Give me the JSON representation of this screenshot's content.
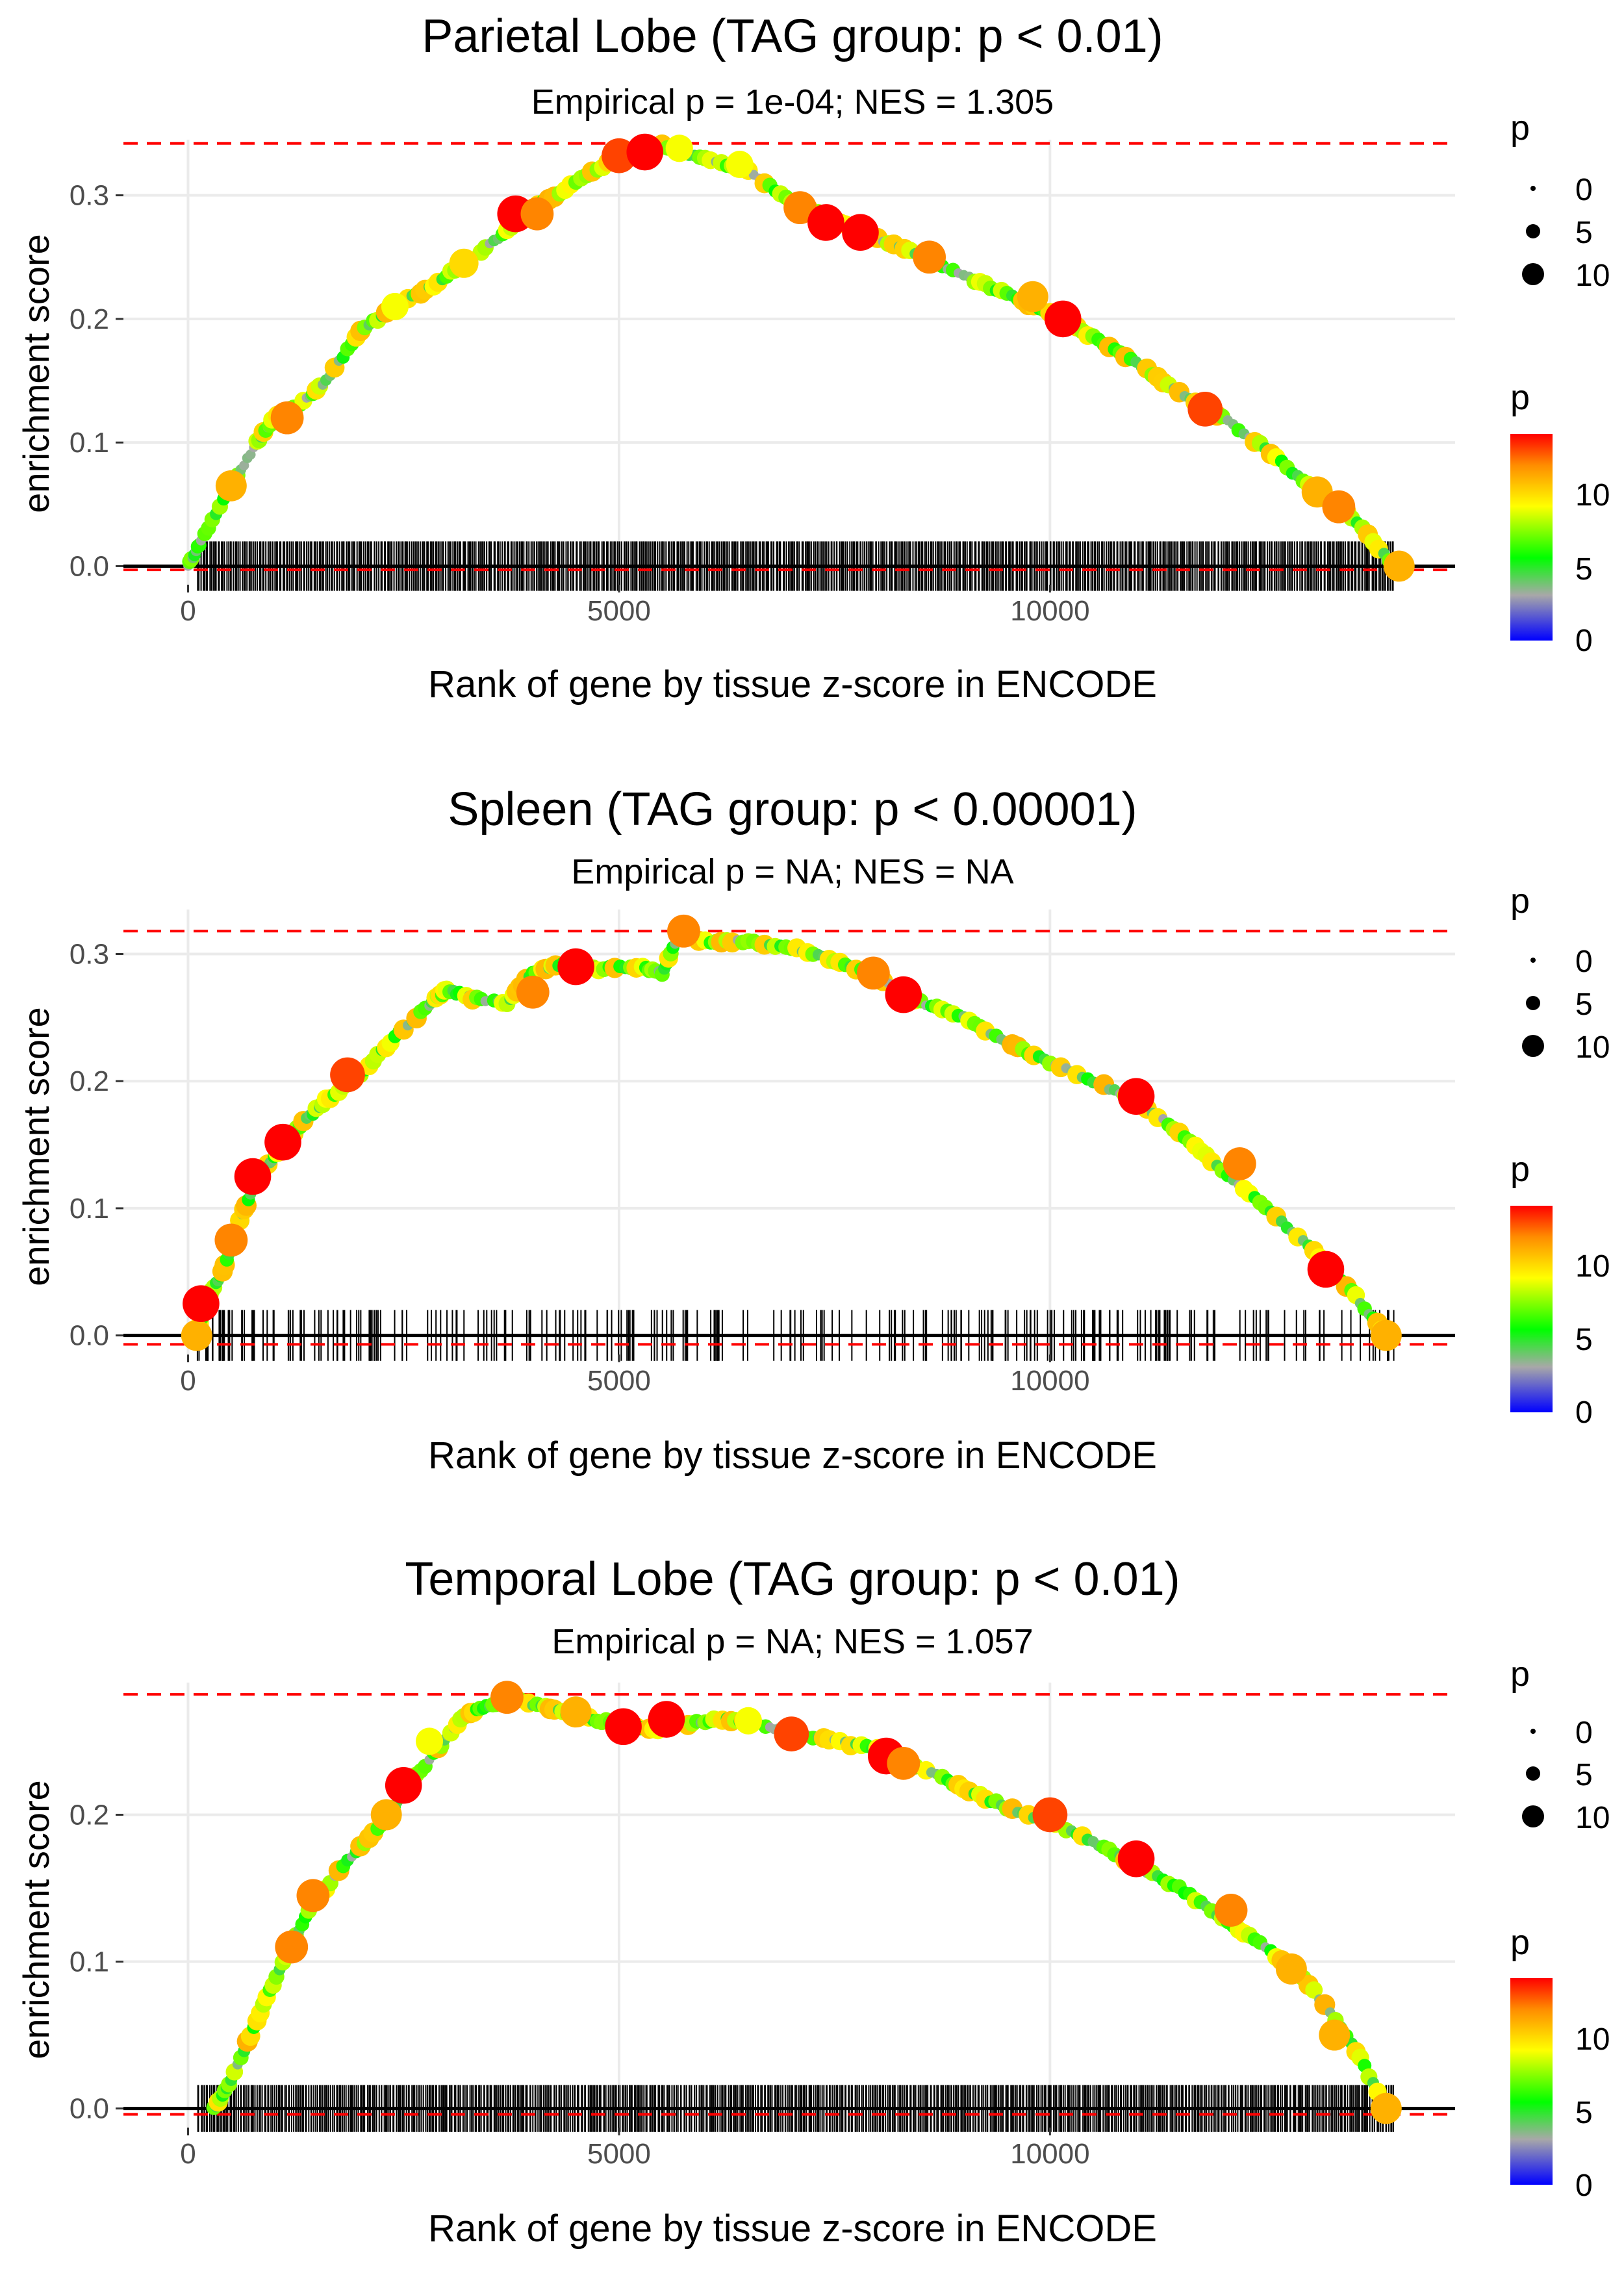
{
  "colors": {
    "background": "#ffffff",
    "grid": "#ebebeb",
    "axis_text": "#4d4d4d",
    "title_text": "#000000",
    "running_line": "#a8a8a8",
    "reference_line": "#ff0000",
    "baseline": "#000000",
    "rug": "#000000",
    "colorbar_stops": [
      "#0000ff",
      "#a8a8a8",
      "#00ff00",
      "#ffff00",
      "#ff8c00",
      "#ff0000"
    ]
  },
  "chart_data": [
    {
      "type": "scatter",
      "title": "Parietal Lobe (TAG group: p < 0.01)",
      "subtitle": "Empirical p = 1e-04; NES = 1.305",
      "xlabel": "Rank of gene by tissue z-score in ENCODE",
      "ylabel": "enrichment score",
      "xlim": [
        -750,
        14700
      ],
      "ylim": [
        -0.015,
        0.345
      ],
      "x_ticks": [
        0,
        5000,
        10000
      ],
      "x_tick_labels": [
        "0",
        "5000",
        "10000"
      ],
      "y_ticks": [
        0.0,
        0.1,
        0.2,
        0.3
      ],
      "y_tick_labels": [
        "0.0",
        "0.1",
        "0.2",
        "0.3"
      ],
      "grid": true,
      "max_es_line": 0.342,
      "min_es_line": -0.003,
      "rug": {
        "from": 100,
        "to": 14000,
        "count": 700,
        "dense": true,
        "y_top": 0.02,
        "y_bottom": -0.02
      },
      "curve": [
        [
          0,
          0.0
        ],
        [
          150,
          0.02
        ],
        [
          500,
          0.065
        ],
        [
          800,
          0.1
        ],
        [
          1000,
          0.12
        ],
        [
          1300,
          0.13
        ],
        [
          1600,
          0.15
        ],
        [
          2000,
          0.19
        ],
        [
          2400,
          0.21
        ],
        [
          2800,
          0.225
        ],
        [
          3200,
          0.245
        ],
        [
          3600,
          0.265
        ],
        [
          4000,
          0.29
        ],
        [
          4500,
          0.31
        ],
        [
          5000,
          0.332
        ],
        [
          5500,
          0.34
        ],
        [
          6000,
          0.33
        ],
        [
          6500,
          0.32
        ],
        [
          7000,
          0.295
        ],
        [
          7500,
          0.28
        ],
        [
          8000,
          0.265
        ],
        [
          8500,
          0.252
        ],
        [
          9000,
          0.235
        ],
        [
          9500,
          0.22
        ],
        [
          10000,
          0.205
        ],
        [
          10500,
          0.185
        ],
        [
          11000,
          0.165
        ],
        [
          11500,
          0.14
        ],
        [
          12000,
          0.12
        ],
        [
          12500,
          0.095
        ],
        [
          13000,
          0.065
        ],
        [
          13500,
          0.04
        ],
        [
          14000,
          0.0
        ]
      ],
      "points": [
        [
          500,
          0.065,
          11
        ],
        [
          1150,
          0.12,
          12
        ],
        [
          3800,
          0.285,
          14
        ],
        [
          4050,
          0.285,
          12
        ],
        [
          5000,
          0.332,
          13
        ],
        [
          5300,
          0.335,
          14
        ],
        [
          5700,
          0.338,
          9
        ],
        [
          7100,
          0.29,
          12
        ],
        [
          7400,
          0.278,
          14
        ],
        [
          7800,
          0.27,
          14
        ],
        [
          8600,
          0.25,
          12
        ],
        [
          9800,
          0.218,
          11
        ],
        [
          10150,
          0.2,
          14
        ],
        [
          11800,
          0.127,
          13
        ],
        [
          13100,
          0.06,
          11
        ],
        [
          13350,
          0.048,
          12
        ],
        [
          14050,
          0.0,
          11
        ],
        [
          2400,
          0.21,
          9
        ],
        [
          3200,
          0.245,
          10
        ],
        [
          6400,
          0.325,
          9
        ]
      ],
      "legend_size": {
        "title": "p",
        "labels": [
          "0",
          "5",
          "10"
        ],
        "values": [
          0,
          5,
          10
        ]
      },
      "legend_color": {
        "title": "p",
        "labels": [
          "10",
          "5",
          "0"
        ],
        "values": [
          10,
          5,
          0
        ],
        "max": 14
      }
    },
    {
      "type": "scatter",
      "title": "Spleen (TAG group: p < 0.00001)",
      "subtitle": "Empirical p = NA; NES = NA",
      "xlabel": "Rank of gene by tissue z-score in ENCODE",
      "ylabel": "enrichment score",
      "xlim": [
        -750,
        14700
      ],
      "ylim": [
        -0.015,
        0.335
      ],
      "x_ticks": [
        0,
        5000,
        10000
      ],
      "x_tick_labels": [
        "0",
        "5000",
        "10000"
      ],
      "y_ticks": [
        0.0,
        0.1,
        0.2,
        0.3
      ],
      "y_tick_labels": [
        "0.0",
        "0.1",
        "0.2",
        "0.3"
      ],
      "grid": true,
      "max_es_line": 0.318,
      "min_es_line": -0.007,
      "rug": {
        "from": 100,
        "to": 14000,
        "count": 260,
        "dense": false,
        "y_top": 0.02,
        "y_bottom": -0.02
      },
      "curve": [
        [
          100,
          0.0
        ],
        [
          200,
          0.025
        ],
        [
          400,
          0.05
        ],
        [
          600,
          0.09
        ],
        [
          800,
          0.125
        ],
        [
          1000,
          0.14
        ],
        [
          1300,
          0.165
        ],
        [
          1600,
          0.185
        ],
        [
          2000,
          0.205
        ],
        [
          2400,
          0.235
        ],
        [
          2800,
          0.26
        ],
        [
          3000,
          0.272
        ],
        [
          3300,
          0.265
        ],
        [
          3700,
          0.262
        ],
        [
          4000,
          0.285
        ],
        [
          4300,
          0.292
        ],
        [
          4700,
          0.288
        ],
        [
          5200,
          0.29
        ],
        [
          5500,
          0.285
        ],
        [
          5700,
          0.316
        ],
        [
          6000,
          0.31
        ],
        [
          6500,
          0.31
        ],
        [
          7000,
          0.305
        ],
        [
          7500,
          0.295
        ],
        [
          8000,
          0.282
        ],
        [
          8500,
          0.262
        ],
        [
          9000,
          0.25
        ],
        [
          9500,
          0.23
        ],
        [
          10000,
          0.215
        ],
        [
          10500,
          0.2
        ],
        [
          11000,
          0.185
        ],
        [
          11500,
          0.16
        ],
        [
          12000,
          0.13
        ],
        [
          12500,
          0.1
        ],
        [
          13000,
          0.07
        ],
        [
          13500,
          0.035
        ],
        [
          13900,
          0.0
        ]
      ],
      "points": [
        [
          100,
          0.0,
          11
        ],
        [
          150,
          0.025,
          14
        ],
        [
          500,
          0.075,
          12
        ],
        [
          750,
          0.125,
          14
        ],
        [
          1100,
          0.152,
          14
        ],
        [
          1850,
          0.205,
          13
        ],
        [
          4000,
          0.27,
          12
        ],
        [
          4500,
          0.29,
          14
        ],
        [
          5750,
          0.318,
          12
        ],
        [
          7950,
          0.285,
          12
        ],
        [
          8300,
          0.268,
          14
        ],
        [
          11000,
          0.188,
          14
        ],
        [
          12200,
          0.135,
          12
        ],
        [
          13200,
          0.052,
          14
        ],
        [
          13900,
          0.0,
          11
        ]
      ],
      "legend_size": {
        "title": "p",
        "labels": [
          "0",
          "5",
          "10"
        ],
        "values": [
          0,
          5,
          10
        ]
      },
      "legend_color": {
        "title": "p",
        "labels": [
          "10",
          "5",
          "0"
        ],
        "values": [
          10,
          5,
          0
        ],
        "max": 14
      }
    },
    {
      "type": "scatter",
      "title": "Temporal Lobe (TAG group: p < 0.01)",
      "subtitle": "Empirical p = NA; NES = 1.057",
      "xlabel": "Rank of gene by tissue z-score in ENCODE",
      "ylabel": "enrichment score",
      "xlim": [
        -750,
        14700
      ],
      "ylim": [
        -0.013,
        0.29
      ],
      "x_ticks": [
        0,
        5000,
        10000
      ],
      "x_tick_labels": [
        "0",
        "5000",
        "10000"
      ],
      "y_ticks": [
        0.0,
        0.1,
        0.2
      ],
      "y_tick_labels": [
        "0.0",
        "0.1",
        "0.2"
      ],
      "grid": true,
      "max_es_line": 0.282,
      "min_es_line": -0.004,
      "rug": {
        "from": 100,
        "to": 14000,
        "count": 700,
        "dense": true,
        "y_top": 0.016,
        "y_bottom": -0.016
      },
      "curve": [
        [
          300,
          0.0
        ],
        [
          500,
          0.02
        ],
        [
          800,
          0.06
        ],
        [
          1100,
          0.1
        ],
        [
          1400,
          0.135
        ],
        [
          1800,
          0.165
        ],
        [
          2200,
          0.19
        ],
        [
          2500,
          0.215
        ],
        [
          2900,
          0.245
        ],
        [
          3200,
          0.268
        ],
        [
          3500,
          0.275
        ],
        [
          3800,
          0.278
        ],
        [
          4200,
          0.272
        ],
        [
          4600,
          0.266
        ],
        [
          5000,
          0.262
        ],
        [
          5400,
          0.258
        ],
        [
          5800,
          0.262
        ],
        [
          6200,
          0.265
        ],
        [
          6600,
          0.263
        ],
        [
          7000,
          0.255
        ],
        [
          7500,
          0.25
        ],
        [
          8000,
          0.245
        ],
        [
          8500,
          0.232
        ],
        [
          9000,
          0.218
        ],
        [
          9500,
          0.205
        ],
        [
          10000,
          0.195
        ],
        [
          10500,
          0.182
        ],
        [
          11000,
          0.165
        ],
        [
          11500,
          0.15
        ],
        [
          12000,
          0.13
        ],
        [
          12500,
          0.11
        ],
        [
          13000,
          0.085
        ],
        [
          13500,
          0.045
        ],
        [
          13900,
          0.0
        ]
      ],
      "points": [
        [
          1200,
          0.11,
          12
        ],
        [
          1450,
          0.145,
          12
        ],
        [
          2300,
          0.2,
          11
        ],
        [
          2500,
          0.22,
          14
        ],
        [
          3700,
          0.28,
          12
        ],
        [
          4500,
          0.27,
          11
        ],
        [
          5050,
          0.26,
          14
        ],
        [
          5550,
          0.265,
          14
        ],
        [
          7000,
          0.255,
          13
        ],
        [
          8100,
          0.24,
          14
        ],
        [
          8300,
          0.235,
          12
        ],
        [
          10000,
          0.2,
          13
        ],
        [
          11000,
          0.17,
          14
        ],
        [
          12100,
          0.135,
          12
        ],
        [
          12800,
          0.095,
          11
        ],
        [
          13300,
          0.05,
          11
        ],
        [
          13900,
          0.0,
          11
        ],
        [
          2800,
          0.25,
          9
        ],
        [
          6500,
          0.264,
          9
        ]
      ],
      "legend_size": {
        "title": "p",
        "labels": [
          "0",
          "5",
          "10"
        ],
        "values": [
          0,
          5,
          10
        ]
      },
      "legend_color": {
        "title": "p",
        "labels": [
          "10",
          "5",
          "0"
        ],
        "values": [
          10,
          5,
          0
        ],
        "max": 14
      }
    }
  ]
}
